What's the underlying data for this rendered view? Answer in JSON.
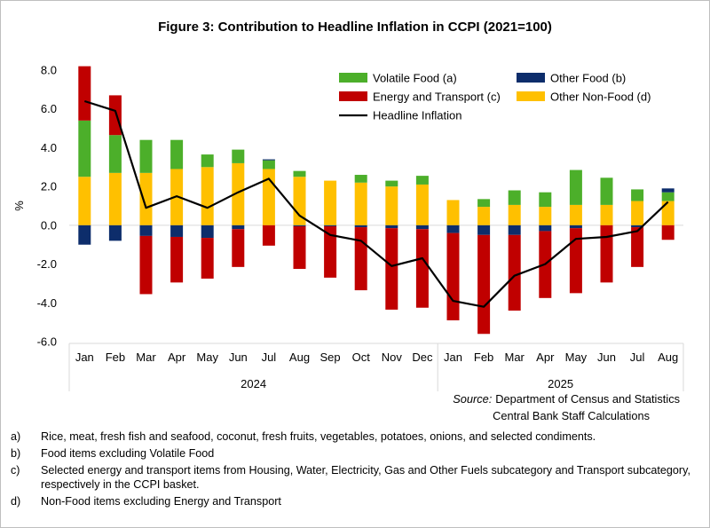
{
  "chart_data": {
    "type": "bar",
    "stacked": true,
    "title": "Figure 3: Contribution to Headline Inflation in CCPI (2021=100)",
    "ylabel": "%",
    "ylim": [
      -6.0,
      8.0
    ],
    "yticks": [
      "8.0",
      "6.0",
      "4.0",
      "2.0",
      "0.0",
      "-2.0",
      "-4.0",
      "-6.0"
    ],
    "ytick_values": [
      8,
      6,
      4,
      2,
      0,
      -2,
      -4,
      -6
    ],
    "categories": [
      "Jan",
      "Feb",
      "Mar",
      "Apr",
      "May",
      "Jun",
      "Jul",
      "Aug",
      "Sep",
      "Oct",
      "Nov",
      "Dec",
      "Jan",
      "Feb",
      "Mar",
      "Apr",
      "May",
      "Jun",
      "Jul",
      "Aug"
    ],
    "year_groups": [
      {
        "label": "2024",
        "count": 12
      },
      {
        "label": "2025",
        "count": 8
      }
    ],
    "legend_position": "top-right",
    "series": [
      {
        "name": "Other Non-Food (d)",
        "color": "#ffc000",
        "kind": "bar",
        "values": [
          2.5,
          2.7,
          2.7,
          2.9,
          3.0,
          3.2,
          2.9,
          2.5,
          2.3,
          2.2,
          2.0,
          2.1,
          1.3,
          0.95,
          1.05,
          0.95,
          1.05,
          1.05,
          1.25,
          1.25
        ]
      },
      {
        "name": "Volatile Food (a)",
        "color": "#4caf2a",
        "kind": "bar",
        "values": [
          2.9,
          1.95,
          1.7,
          1.5,
          0.65,
          0.7,
          0.45,
          0.3,
          0.0,
          0.4,
          0.3,
          0.45,
          0.0,
          0.4,
          0.75,
          0.75,
          1.8,
          1.4,
          0.6,
          0.45
        ]
      },
      {
        "name": "Other Food (b)",
        "color": "#0d2d6b",
        "kind": "bar",
        "values": [
          -1.0,
          -0.8,
          -0.55,
          -0.6,
          -0.65,
          -0.2,
          0.05,
          -0.05,
          -0.05,
          -0.1,
          -0.15,
          -0.2,
          -0.4,
          -0.5,
          -0.5,
          -0.3,
          -0.15,
          0.0,
          -0.1,
          0.2
        ]
      },
      {
        "name": "Energy and Transport (c)",
        "color": "#c00000",
        "kind": "bar",
        "values": [
          2.8,
          2.05,
          -3.0,
          -2.35,
          -2.1,
          -1.95,
          -1.05,
          -2.2,
          -2.65,
          -3.25,
          -4.2,
          -4.05,
          -4.5,
          -5.1,
          -3.9,
          -3.45,
          -3.35,
          -2.95,
          -2.05,
          -0.75
        ]
      },
      {
        "name": "Headline Inflation",
        "color": "#000000",
        "kind": "line",
        "values": [
          6.4,
          5.9,
          0.9,
          1.5,
          0.9,
          1.7,
          2.4,
          0.5,
          -0.5,
          -0.8,
          -2.1,
          -1.7,
          -3.9,
          -4.2,
          -2.6,
          -2.0,
          -0.7,
          -0.6,
          -0.3,
          1.2
        ]
      }
    ],
    "grid": false
  },
  "source": {
    "label": "Source:",
    "line1": "Department of Census and Statistics",
    "line2": "Central Bank Staff Calculations"
  },
  "notes": [
    {
      "key": "a)",
      "text": "Rice, meat, fresh fish and seafood, coconut, fresh fruits, vegetables, potatoes, onions, and selected condiments."
    },
    {
      "key": "b)",
      "text": "Food items excluding Volatile Food"
    },
    {
      "key": "c)",
      "text": "Selected energy and transport items from Housing, Water, Electricity, Gas and Other Fuels subcategory and Transport subcategory, respectively in the CCPI basket."
    },
    {
      "key": "d)",
      "text": "Non-Food items excluding Energy and Transport"
    }
  ]
}
